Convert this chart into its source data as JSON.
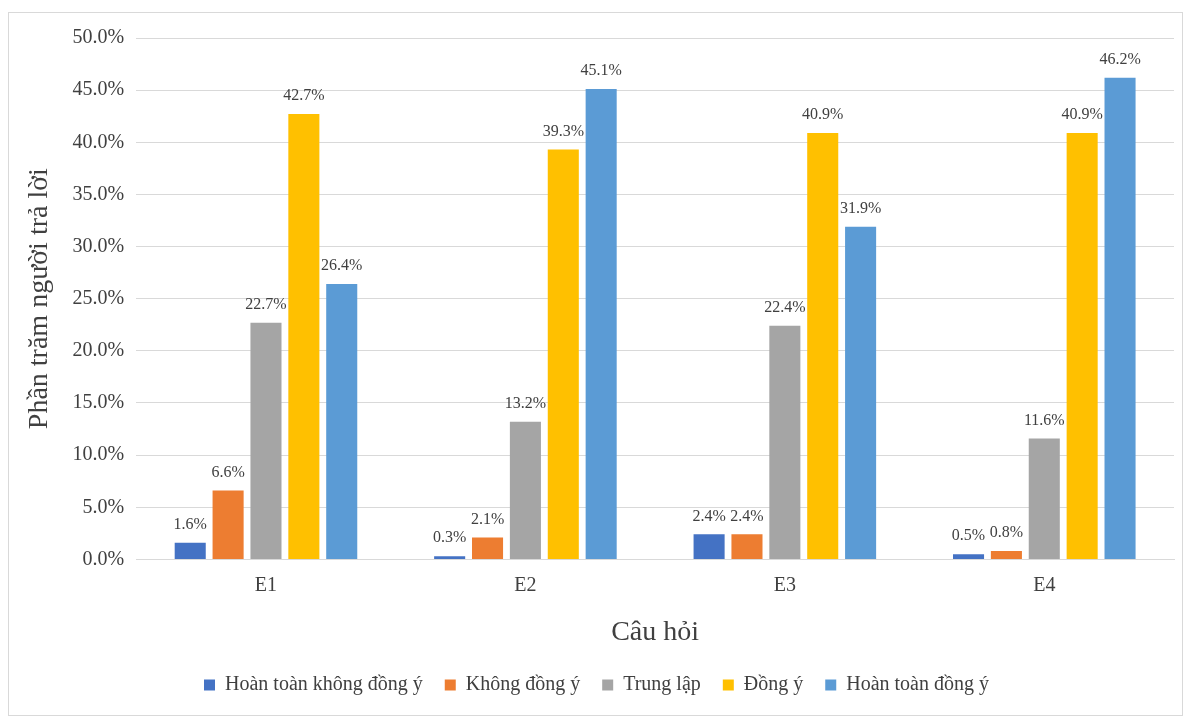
{
  "chart_data": {
    "type": "bar",
    "xlabel": "Câu hỏi",
    "ylabel": "Phần trăm người trả lời",
    "categories": [
      "E1",
      "E2",
      "E3",
      "E4"
    ],
    "series": [
      {
        "name": "Hoàn toàn không đồng ý",
        "color": "#4472c4",
        "values": [
          1.6,
          0.3,
          2.4,
          0.5
        ],
        "value_labels": [
          "1.6%",
          "0.3%",
          "2.4%",
          "0.5%"
        ]
      },
      {
        "name": "Không đồng ý",
        "color": "#ed7d31",
        "values": [
          6.6,
          2.1,
          2.4,
          0.8
        ],
        "value_labels": [
          "6.6%",
          "2.1%",
          "2.4%",
          "0.8%"
        ]
      },
      {
        "name": "Trung lập",
        "color": "#a5a5a5",
        "values": [
          22.7,
          13.2,
          22.4,
          11.6
        ],
        "value_labels": [
          "22.7%",
          "13.2%",
          "22.4%",
          "11.6%"
        ]
      },
      {
        "name": "Đồng ý",
        "color": "#ffc000",
        "values": [
          42.7,
          39.3,
          40.9,
          40.9
        ],
        "value_labels": [
          "42.7%",
          "39.3%",
          "40.9%",
          "40.9%"
        ]
      },
      {
        "name": "Hoàn toàn đồng ý",
        "color": "#5b9bd5",
        "values": [
          26.4,
          45.1,
          31.9,
          46.2
        ],
        "value_labels": [
          "26.4%",
          "45.1%",
          "31.9%",
          "46.2%"
        ]
      }
    ],
    "ylim": [
      0,
      50
    ],
    "yticks": [
      {
        "value": 0,
        "label": "0.0%"
      },
      {
        "value": 5,
        "label": "5.0%"
      },
      {
        "value": 10,
        "label": "10.0%"
      },
      {
        "value": 15,
        "label": "15.0%"
      },
      {
        "value": 20,
        "label": "20.0%"
      },
      {
        "value": 25,
        "label": "25.0%"
      },
      {
        "value": 30,
        "label": "30.0%"
      },
      {
        "value": 35,
        "label": "35.0%"
      },
      {
        "value": 40,
        "label": "40.0%"
      },
      {
        "value": 45,
        "label": "45.0%"
      },
      {
        "value": 50,
        "label": "50.0%"
      }
    ],
    "grid": "y",
    "legend": "bottom"
  }
}
